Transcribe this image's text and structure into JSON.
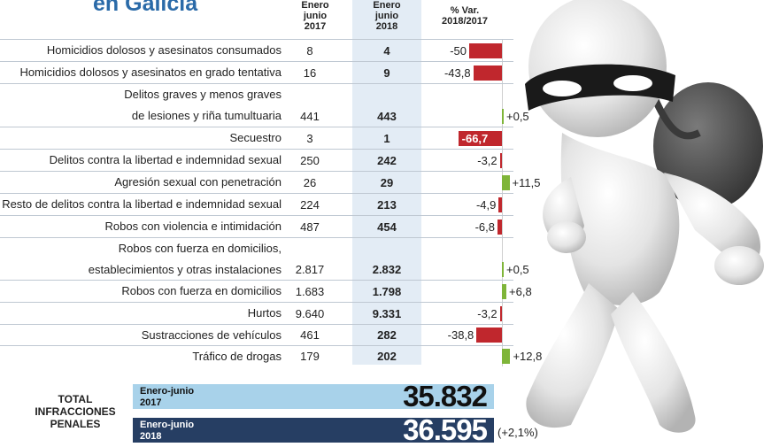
{
  "title": "en Galicia",
  "headers": {
    "col2017": [
      "Enero",
      "junio",
      "2017"
    ],
    "col2018": [
      "Enero",
      "junio",
      "2018"
    ],
    "colvar": [
      "% Var.",
      "2018/2017"
    ]
  },
  "chart_data": {
    "type": "bar",
    "rows": [
      {
        "label": [
          "Homicidios dolosos y asesinatos consumados"
        ],
        "v2017": "8",
        "v2018": "4",
        "var": -50,
        "var_label": "-50"
      },
      {
        "label": [
          "Homicidios dolosos y asesinatos en grado tentativa"
        ],
        "v2017": "16",
        "v2018": "9",
        "var": -43.8,
        "var_label": "-43,8"
      },
      {
        "label": [
          "Delitos graves y menos graves",
          "de lesiones y riña tumultuaria"
        ],
        "v2017": "441",
        "v2018": "443",
        "var": 0.5,
        "var_label": "+0,5"
      },
      {
        "label": [
          "Secuestro"
        ],
        "v2017": "3",
        "v2018": "1",
        "var": -66.7,
        "var_label": "-66,7"
      },
      {
        "label": [
          "Delitos contra la libertad e indemnidad sexual"
        ],
        "v2017": "250",
        "v2018": "242",
        "var": -3.2,
        "var_label": "-3,2"
      },
      {
        "label": [
          "Agresión sexual con penetración"
        ],
        "v2017": "26",
        "v2018": "29",
        "var": 11.5,
        "var_label": "+11,5"
      },
      {
        "label": [
          "Resto de delitos contra la libertad e indemnidad sexual"
        ],
        "v2017": "224",
        "v2018": "213",
        "var": -4.9,
        "var_label": "-4,9"
      },
      {
        "label": [
          "Robos con violencia e intimidación"
        ],
        "v2017": "487",
        "v2018": "454",
        "var": -6.8,
        "var_label": "-6,8"
      },
      {
        "label": [
          "Robos con fuerza en domicilios,",
          "establecimientos y otras instalaciones"
        ],
        "v2017": "2.817",
        "v2018": "2.832",
        "var": 0.5,
        "var_label": "+0,5"
      },
      {
        "label": [
          "Robos con fuerza en domicilios"
        ],
        "v2017": "1.683",
        "v2018": "1.798",
        "var": 6.8,
        "var_label": "+6,8"
      },
      {
        "label": [
          "Hurtos"
        ],
        "v2017": "9.640",
        "v2018": "9.331",
        "var": -3.2,
        "var_label": "-3,2"
      },
      {
        "label": [
          "Sustracciones de vehículos"
        ],
        "v2017": "461",
        "v2018": "282",
        "var": -38.8,
        "var_label": "-38,8"
      },
      {
        "label": [
          "Tráfico de drogas"
        ],
        "v2017": "179",
        "v2018": "202",
        "var": 12.8,
        "var_label": "+12,8"
      }
    ],
    "colors": {
      "negative": "#c0272d",
      "positive": "#7fb539",
      "highlight_2018": "#e3ecf5"
    }
  },
  "totals": {
    "label": [
      "TOTAL",
      "INFRACCIONES",
      "PENALES"
    ],
    "p2017": [
      "Enero-junio",
      "2017"
    ],
    "v2017": "35.832",
    "p2018": [
      "Enero-junio",
      "2018"
    ],
    "v2018": "36.595",
    "var_label": "(+2,1%)"
  }
}
